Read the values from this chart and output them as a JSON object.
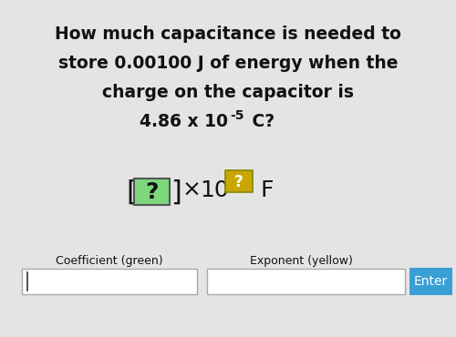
{
  "bg_color": "#e4e4e4",
  "text_color": "#111111",
  "green_box_color": "#7dd87d",
  "green_box_edge": "#555555",
  "yellow_box_color": "#c8a800",
  "yellow_box_edge": "#888800",
  "blue_btn_color": "#3a9fd4",
  "white_box_color": "#ffffff",
  "white_box_edge": "#aaaaaa",
  "line1": "How much capacitance is needed to",
  "line2": "store 0.00100 J of energy when the",
  "line3": "charge on the capacitor is",
  "line4a": "4.86 x 10",
  "line4b": "-5",
  "line4c": " C?",
  "label_coeff": "Coefficient (green)",
  "label_exp": "Exponent (yellow)",
  "btn_text": "Enter",
  "fsize_q": 13.5,
  "fsize_formula": 18,
  "fsize_super": 10,
  "fsize_label": 9,
  "fsize_btn": 10
}
